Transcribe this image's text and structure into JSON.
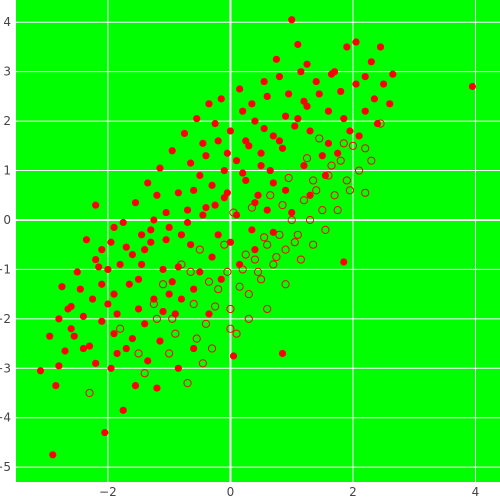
{
  "chart_data": {
    "type": "scatter",
    "title": "",
    "xlabel": "",
    "ylabel": "",
    "xlim": [
      -3.5,
      4.4
    ],
    "ylim": [
      -5.3,
      4.45
    ],
    "x_ticks": [
      -2,
      0,
      2,
      4
    ],
    "y_ticks": [
      -5,
      -4,
      -3,
      -2,
      -1,
      0,
      1,
      2,
      3,
      4
    ],
    "x_tick_labels": [
      "−2",
      "0",
      "2",
      "4"
    ],
    "y_tick_labels": [
      "−5",
      "−4",
      "−3",
      "−2",
      "−1",
      "0",
      "1",
      "2",
      "3",
      "4"
    ],
    "grid": true,
    "legend": "none",
    "colors": {
      "plot_background": "#00ff00",
      "grid": "#ffffff",
      "filled_marker": "#ff0000",
      "open_marker_outline": "#ff0000"
    },
    "series": [
      {
        "marker": "filled-circle",
        "color": "#ff0000",
        "points": [
          [
            -2.9,
            -4.75
          ],
          [
            -3.1,
            -3.05
          ],
          [
            -2.85,
            -3.35
          ],
          [
            -2.8,
            -2.95
          ],
          [
            -2.7,
            -2.65
          ],
          [
            -2.6,
            -2.2
          ],
          [
            -2.4,
            -2.6
          ],
          [
            -2.3,
            -2.55
          ],
          [
            -2.1,
            -2.05
          ],
          [
            -2.8,
            -2.0
          ],
          [
            -2.75,
            -1.35
          ],
          [
            -2.6,
            -1.75
          ],
          [
            -2.35,
            -0.4
          ],
          [
            -2.2,
            -0.8
          ],
          [
            -2.2,
            0.3
          ],
          [
            -2.1,
            -1.3
          ],
          [
            -2.0,
            -1.7
          ],
          [
            -1.9,
            -1.5
          ],
          [
            -1.8,
            -0.9
          ],
          [
            -1.9,
            -2.3
          ],
          [
            -1.7,
            -2.6
          ],
          [
            -1.6,
            -2.4
          ],
          [
            -1.5,
            -1.8
          ],
          [
            -1.5,
            -1.2
          ],
          [
            -1.4,
            -0.6
          ],
          [
            -1.3,
            -0.2
          ],
          [
            -1.2,
            0.5
          ],
          [
            -1.1,
            -1.0
          ],
          [
            -1.0,
            -1.5
          ],
          [
            -0.9,
            -1.9
          ],
          [
            -0.8,
            -0.3
          ],
          [
            -0.7,
            0.2
          ],
          [
            -0.6,
            0.6
          ],
          [
            -0.5,
            0.9
          ],
          [
            -0.4,
            1.3
          ],
          [
            -0.3,
            0.7
          ],
          [
            -0.2,
            1.6
          ],
          [
            -0.1,
            1.0
          ],
          [
            0.0,
            1.8
          ],
          [
            0.1,
            1.2
          ],
          [
            0.2,
            2.2
          ],
          [
            0.3,
            1.5
          ],
          [
            0.4,
            2.0
          ],
          [
            0.5,
            1.1
          ],
          [
            0.6,
            2.5
          ],
          [
            0.7,
            1.7
          ],
          [
            0.8,
            2.9
          ],
          [
            0.9,
            2.1
          ],
          [
            1.0,
            4.05
          ],
          [
            1.1,
            3.55
          ],
          [
            1.2,
            2.4
          ],
          [
            1.4,
            2.8
          ],
          [
            1.6,
            2.2
          ],
          [
            1.7,
            3.0
          ],
          [
            1.8,
            2.6
          ],
          [
            1.9,
            3.5
          ],
          [
            2.05,
            3.6
          ],
          [
            2.2,
            2.9
          ],
          [
            2.3,
            3.2
          ],
          [
            2.45,
            3.5
          ],
          [
            2.5,
            2.75
          ],
          [
            2.65,
            2.95
          ],
          [
            2.6,
            2.35
          ],
          [
            2.1,
            1.7
          ],
          [
            1.5,
            1.3
          ],
          [
            1.3,
            1.8
          ],
          [
            3.95,
            2.7
          ],
          [
            -1.55,
            -3.35
          ],
          [
            -1.2,
            -3.4
          ],
          [
            -1.75,
            -3.85
          ],
          [
            -2.05,
            -4.3
          ],
          [
            -0.85,
            -3.0
          ],
          [
            0.05,
            -2.75
          ],
          [
            0.85,
            -2.7
          ],
          [
            1.85,
            -0.85
          ],
          [
            -2.95,
            -2.35
          ],
          [
            -2.65,
            -1.8
          ],
          [
            -2.45,
            -1.4
          ],
          [
            -2.15,
            -0.95
          ],
          [
            -1.95,
            -0.45
          ],
          [
            -1.75,
            -0.05
          ],
          [
            -1.55,
            0.35
          ],
          [
            -1.35,
            0.75
          ],
          [
            -1.15,
            1.05
          ],
          [
            -0.95,
            1.4
          ],
          [
            -0.75,
            1.75
          ],
          [
            -0.55,
            2.05
          ],
          [
            -0.35,
            2.35
          ],
          [
            -0.15,
            2.45
          ],
          [
            0.15,
            2.65
          ],
          [
            -2.5,
            -1.05
          ],
          [
            -2.25,
            -1.6
          ],
          [
            -2.0,
            -1.0
          ],
          [
            -1.85,
            -1.9
          ],
          [
            -1.65,
            -1.3
          ],
          [
            -1.45,
            -0.9
          ],
          [
            -1.25,
            -1.6
          ],
          [
            -1.05,
            -0.4
          ],
          [
            -0.85,
            -0.95
          ],
          [
            -0.65,
            -0.5
          ],
          [
            -0.45,
            0.1
          ],
          [
            -0.25,
            0.3
          ],
          [
            -0.05,
            0.55
          ],
          [
            0.25,
            0.8
          ],
          [
            0.45,
            0.5
          ],
          [
            0.65,
            1.0
          ],
          [
            0.85,
            1.45
          ],
          [
            1.05,
            1.9
          ],
          [
            1.25,
            2.3
          ],
          [
            1.45,
            2.55
          ],
          [
            -1.6,
            -0.7
          ],
          [
            -1.3,
            -0.45
          ],
          [
            -1.0,
            -0.15
          ],
          [
            -0.7,
            -0.05
          ],
          [
            -0.4,
            0.25
          ],
          [
            -0.1,
            0.45
          ],
          [
            0.2,
            0.95
          ],
          [
            0.5,
            1.35
          ],
          [
            0.8,
            1.6
          ],
          [
            1.1,
            2.05
          ],
          [
            -1.85,
            -2.7
          ],
          [
            -1.4,
            -2.1
          ],
          [
            -1.15,
            -2.45
          ],
          [
            -0.95,
            -1.25
          ],
          [
            -0.6,
            -1.4
          ],
          [
            -0.3,
            -0.75
          ],
          [
            0.0,
            -0.45
          ],
          [
            0.35,
            -0.2
          ],
          [
            0.6,
            0.2
          ],
          [
            0.9,
            0.6
          ],
          [
            -2.2,
            -2.9
          ],
          [
            -1.95,
            -3.0
          ],
          [
            -1.35,
            -2.85
          ],
          [
            -0.6,
            -2.6
          ],
          [
            -0.35,
            -1.9
          ],
          [
            -0.15,
            -1.2
          ],
          [
            0.15,
            -0.9
          ],
          [
            0.4,
            -0.6
          ],
          [
            0.7,
            -0.25
          ],
          [
            1.0,
            0.15
          ],
          [
            1.3,
            0.5
          ],
          [
            1.55,
            0.9
          ],
          [
            1.75,
            1.35
          ],
          [
            1.95,
            1.8
          ],
          [
            2.2,
            2.2
          ],
          [
            2.35,
            2.45
          ],
          [
            2.4,
            1.95
          ],
          [
            2.05,
            2.75
          ],
          [
            1.65,
            2.95
          ],
          [
            1.25,
            3.15
          ],
          [
            -0.65,
            1.15
          ],
          [
            -0.45,
            1.55
          ],
          [
            -0.25,
            1.95
          ],
          [
            0.35,
            2.35
          ],
          [
            0.55,
            2.8
          ],
          [
            0.75,
            3.25
          ],
          [
            1.15,
            3.0
          ],
          [
            -1.05,
            0.15
          ],
          [
            -0.85,
            0.55
          ],
          [
            -1.25,
            0.0
          ],
          [
            -1.45,
            -0.3
          ],
          [
            -1.7,
            -0.55
          ],
          [
            -1.9,
            -0.15
          ],
          [
            -2.1,
            -0.6
          ],
          [
            -2.4,
            -1.95
          ],
          [
            -2.55,
            -2.35
          ],
          [
            -1.1,
            -1.85
          ],
          [
            -0.8,
            -1.6
          ],
          [
            -0.5,
            -1.05
          ],
          [
            -0.2,
            -0.3
          ],
          [
            0.1,
            0.1
          ],
          [
            0.4,
            0.35
          ],
          [
            0.7,
            0.75
          ],
          [
            1.2,
            1.1
          ],
          [
            1.6,
            1.55
          ],
          [
            1.85,
            2.05
          ],
          [
            0.95,
            2.55
          ],
          [
            0.55,
            1.85
          ],
          [
            0.25,
            1.6
          ],
          [
            -0.05,
            1.35
          ]
        ]
      },
      {
        "marker": "open-circle",
        "color": "#ff0000",
        "points": [
          [
            -2.3,
            -3.5
          ],
          [
            -1.8,
            -2.2
          ],
          [
            -1.5,
            -2.7
          ],
          [
            -1.2,
            -2.0
          ],
          [
            -0.9,
            -2.3
          ],
          [
            -0.6,
            -1.7
          ],
          [
            -0.4,
            -2.1
          ],
          [
            -0.2,
            -1.4
          ],
          [
            0.0,
            -1.8
          ],
          [
            0.1,
            -2.3
          ],
          [
            0.2,
            -1.0
          ],
          [
            0.3,
            -1.5
          ],
          [
            0.4,
            -0.8
          ],
          [
            0.5,
            -1.2
          ],
          [
            0.6,
            -0.5
          ],
          [
            0.7,
            -0.9
          ],
          [
            0.8,
            -0.3
          ],
          [
            0.9,
            -0.6
          ],
          [
            1.0,
            0.0
          ],
          [
            1.1,
            -0.3
          ],
          [
            1.2,
            0.4
          ],
          [
            1.3,
            0.0
          ],
          [
            1.4,
            0.6
          ],
          [
            1.5,
            0.2
          ],
          [
            1.6,
            0.9
          ],
          [
            1.7,
            0.5
          ],
          [
            1.8,
            1.2
          ],
          [
            1.9,
            0.8
          ],
          [
            2.0,
            1.5
          ],
          [
            2.1,
            1.0
          ],
          [
            2.3,
            1.2
          ],
          [
            2.2,
            0.55
          ],
          [
            2.45,
            1.95
          ],
          [
            -1.4,
            -3.1
          ],
          [
            -1.0,
            -2.7
          ],
          [
            -0.7,
            -3.3
          ],
          [
            -0.3,
            -2.6
          ],
          [
            0.3,
            -2.0
          ],
          [
            0.6,
            -1.8
          ],
          [
            0.9,
            -1.3
          ],
          [
            1.15,
            -0.8
          ],
          [
            1.35,
            -0.5
          ],
          [
            1.55,
            -0.2
          ],
          [
            1.75,
            0.2
          ],
          [
            1.95,
            0.6
          ],
          [
            -1.1,
            -1.3
          ],
          [
            -0.8,
            -0.9
          ],
          [
            -0.5,
            -0.6
          ],
          [
            -0.1,
            -0.5
          ],
          [
            0.05,
            0.15
          ],
          [
            0.35,
            0.25
          ],
          [
            0.65,
            0.5
          ],
          [
            0.95,
            0.85
          ],
          [
            1.25,
            1.25
          ],
          [
            1.45,
            1.65
          ],
          [
            -0.95,
            -2.0
          ],
          [
            -0.55,
            -2.4
          ],
          [
            -0.25,
            -1.75
          ],
          [
            0.15,
            -1.35
          ],
          [
            0.45,
            -1.05
          ],
          [
            0.75,
            -0.75
          ],
          [
            1.05,
            -0.45
          ],
          [
            1.35,
            0.8
          ],
          [
            1.65,
            1.1
          ],
          [
            0.85,
            0.3
          ],
          [
            0.55,
            -0.35
          ],
          [
            0.25,
            -0.7
          ],
          [
            -0.05,
            -1.05
          ],
          [
            -0.35,
            -1.25
          ],
          [
            -0.65,
            -1.05
          ],
          [
            -1.25,
            -1.7
          ],
          [
            -0.45,
            -2.9
          ],
          [
            0.0,
            -2.2
          ],
          [
            1.85,
            1.55
          ],
          [
            2.2,
            1.45
          ]
        ]
      }
    ]
  }
}
